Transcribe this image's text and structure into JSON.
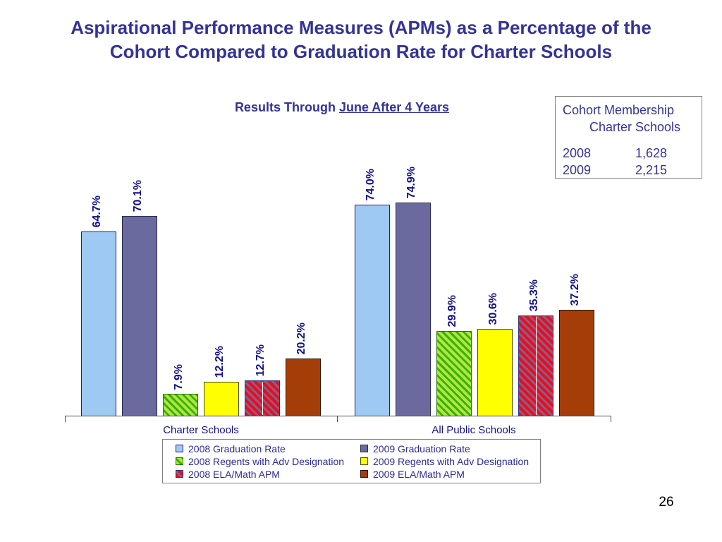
{
  "title": {
    "line1": "Aspirational Performance Measures (APMs) as a Percentage of the",
    "line2": "Cohort Compared to Graduation Rate for Charter Schools"
  },
  "subtitle": {
    "prefix": "Results Through",
    "underlined": "June After 4 Years"
  },
  "cohort_box": {
    "heading_line1": "Cohort Membership",
    "heading_line2": "Charter Schools",
    "rows": [
      {
        "year": "2008",
        "value": "1,628"
      },
      {
        "year": "2009",
        "value": "2,215"
      }
    ]
  },
  "chart_data": {
    "type": "bar",
    "categories": [
      "Charter Schools",
      "All Public Schools"
    ],
    "series": [
      {
        "name": "2008 Graduation Rate",
        "values": [
          64.7,
          74.0
        ],
        "fill": {
          "type": "solid",
          "color": "#9DC9F2"
        },
        "border": "#1F1F7A"
      },
      {
        "name": "2009 Graduation Rate",
        "values": [
          70.1,
          74.9
        ],
        "fill": {
          "type": "solid",
          "color": "#6A6A9E"
        },
        "border": "#2A2A52"
      },
      {
        "name": "2008 Regents with Adv Designation",
        "values": [
          7.9,
          29.9
        ],
        "fill": {
          "type": "hatch",
          "bg": "#ACE93F",
          "fg": "#3FAE0C"
        },
        "border": "#267500"
      },
      {
        "name": "2009 Regents with Adv Designation",
        "values": [
          12.2,
          30.6
        ],
        "fill": {
          "type": "solid",
          "color": "#FFFF00"
        },
        "border": "#4D4D00"
      },
      {
        "name": "2008 ELA/Math APM",
        "values": [
          12.7,
          35.3
        ],
        "fill": {
          "type": "hatch",
          "bg": "#E60E20",
          "fg": "#8A5E86"
        },
        "border": "#33337A",
        "seam": true
      },
      {
        "name": "2009 ELA/Math APM",
        "values": [
          20.2,
          37.2
        ],
        "fill": {
          "type": "solid",
          "color": "#A43D07"
        },
        "border": "#2E1600"
      }
    ],
    "value_label_format": "{v}%",
    "ylim": [
      0,
      100
    ],
    "grid": false,
    "legend_position": "bottom",
    "value_label_color": "#10108F"
  },
  "page_number": "26"
}
